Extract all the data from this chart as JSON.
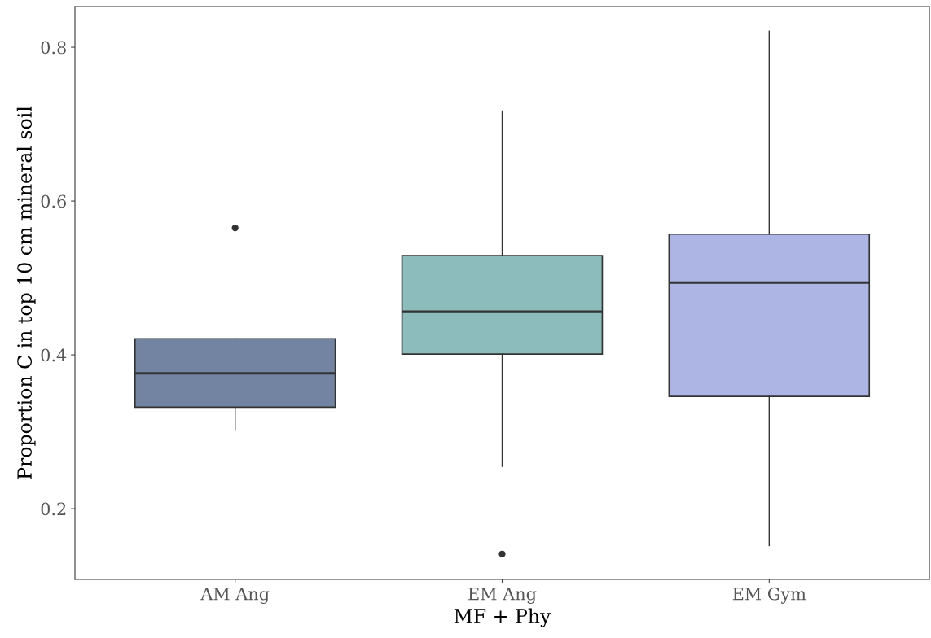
{
  "chart_data": {
    "type": "box",
    "xlabel": "MF + Phy",
    "ylabel": "Proportion C in top 10 cm mineral soil",
    "categories": [
      "AM Ang",
      "EM Ang",
      "EM Gym"
    ],
    "colors": [
      "#7384a3",
      "#8dbcbc",
      "#adb5e4"
    ],
    "boxes": [
      {
        "low": 0.302,
        "q1": 0.332,
        "median": 0.376,
        "q3": 0.421,
        "high": 0.421,
        "outliers": [
          0.565
        ]
      },
      {
        "low": 0.255,
        "q1": 0.401,
        "median": 0.456,
        "q3": 0.529,
        "high": 0.717,
        "outliers": [
          0.141
        ]
      },
      {
        "low": 0.152,
        "q1": 0.346,
        "median": 0.494,
        "q3": 0.557,
        "high": 0.821
      }
    ],
    "ylim": [
      0.108,
      0.853
    ],
    "yticks": [
      0.2,
      0.4,
      0.6,
      0.8
    ],
    "grid": false,
    "legend": false
  }
}
